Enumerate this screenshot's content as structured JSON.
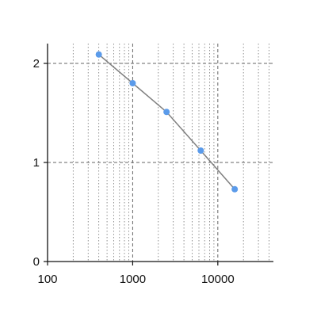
{
  "chart_data": {
    "type": "line",
    "title": "",
    "xlabel": "",
    "ylabel": "",
    "x_scale": "log",
    "xlim": [
      100,
      45000
    ],
    "ylim": [
      0,
      2.2
    ],
    "x_ticks": [
      {
        "value": 100,
        "label": "100"
      },
      {
        "value": 1000,
        "label": "1000"
      },
      {
        "value": 10000,
        "label": "10000"
      }
    ],
    "y_ticks": [
      {
        "value": 0,
        "label": "0"
      },
      {
        "value": 1,
        "label": "1"
      },
      {
        "value": 2,
        "label": "2"
      }
    ],
    "grid": {
      "major": "dashed",
      "minor": "dotted"
    },
    "legend": "none",
    "series": [
      {
        "x": [
          400,
          1000,
          2500,
          6300,
          15800
        ],
        "y": [
          2.09,
          1.8,
          1.51,
          1.12,
          0.73
        ],
        "line_color": "#808080",
        "marker_color": "#5b9bea"
      }
    ]
  }
}
